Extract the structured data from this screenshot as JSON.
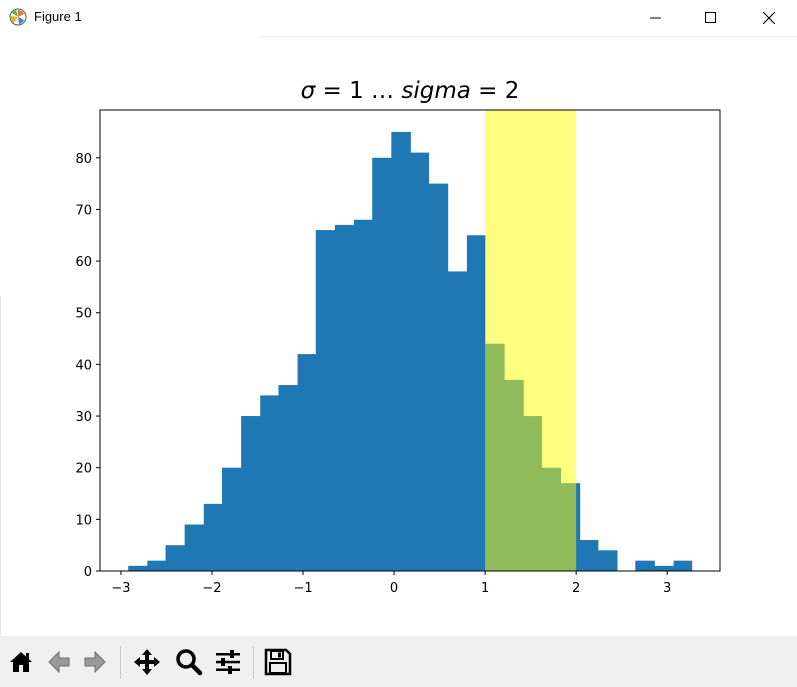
{
  "window": {
    "title": "Figure 1",
    "controls": [
      "minimize-icon",
      "maximize-icon",
      "close-icon"
    ]
  },
  "toolbar": {
    "buttons": [
      {
        "name": "home-button",
        "icon": "home-icon"
      },
      {
        "name": "back-button",
        "icon": "arrow-left-icon"
      },
      {
        "name": "forward-button",
        "icon": "arrow-right-icon"
      },
      {
        "name": "pan-button",
        "icon": "move-icon"
      },
      {
        "name": "zoom-button",
        "icon": "magnifier-icon"
      },
      {
        "name": "configure-subplots-button",
        "icon": "sliders-icon"
      },
      {
        "name": "save-button",
        "icon": "floppy-disk-icon"
      }
    ]
  },
  "chart_data": {
    "type": "bar",
    "title": "σ = 1 … sigma = 2",
    "title_parts": {
      "sym": "σ",
      "eq1": " = 1 … ",
      "word": "sigma",
      "eq2": " = 2"
    },
    "xlabel": "",
    "ylabel": "",
    "bin_edges": [
      -2.92,
      -2.71,
      -2.51,
      -2.3,
      -2.09,
      -1.89,
      -1.68,
      -1.47,
      -1.27,
      -1.06,
      -0.86,
      -0.65,
      -0.44,
      -0.24,
      -0.03,
      0.18,
      0.38,
      0.59,
      0.8,
      1.0,
      1.21,
      1.42,
      1.62,
      1.83,
      2.04,
      2.24,
      2.45,
      2.65,
      2.86,
      3.07,
      3.27
    ],
    "values": [
      1,
      2,
      5,
      9,
      13,
      20,
      30,
      34,
      36,
      42,
      66,
      67,
      68,
      80,
      85,
      81,
      75,
      58,
      65,
      44,
      37,
      30,
      20,
      17,
      6,
      4,
      0,
      2,
      1,
      2
    ],
    "highlight_span": {
      "xmin": 1,
      "xmax": 2,
      "color": "#ffff00",
      "alpha": 0.5
    },
    "xlim": [
      -3.23,
      3.58
    ],
    "ylim": [
      0,
      89.25
    ],
    "xticks": [
      -3,
      -2,
      -1,
      0,
      1,
      2,
      3
    ],
    "xtick_labels": [
      "−3",
      "−2",
      "−1",
      "0",
      "1",
      "2",
      "3"
    ],
    "yticks": [
      0,
      10,
      20,
      30,
      40,
      50,
      60,
      70,
      80
    ],
    "ytick_labels": [
      "0",
      "10",
      "20",
      "30",
      "40",
      "50",
      "60",
      "70",
      "80"
    ],
    "bar_color": "#1f77b4",
    "grid": false,
    "legend": false
  }
}
